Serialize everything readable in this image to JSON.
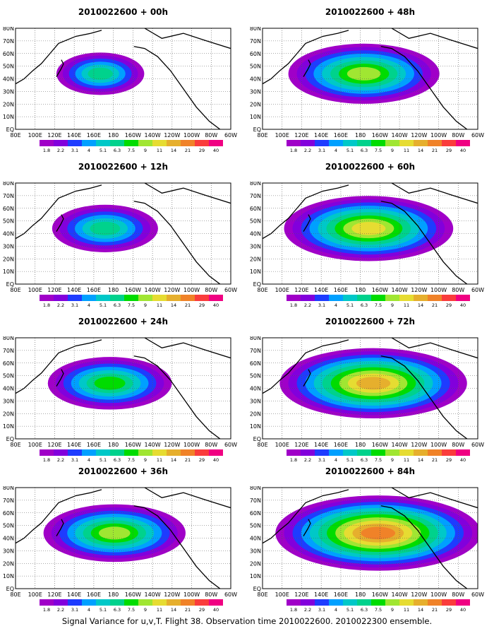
{
  "lat_labels": [
    "80N",
    "70N",
    "60N",
    "50N",
    "40N",
    "30N",
    "20N",
    "10N",
    "EQ"
  ],
  "lon_labels": [
    "80E",
    "100E",
    "120E",
    "140E",
    "160E",
    "180",
    "160W",
    "140W",
    "120W",
    "100W",
    "80W",
    "60W"
  ],
  "colorbar": {
    "labels": [
      "1.8",
      "2.2",
      "3.1",
      "4",
      "5.1",
      "6.3",
      "7.5",
      "9",
      "11",
      "14",
      "21",
      "29",
      "40"
    ],
    "colors": [
      "#a000c8",
      "#8200dc",
      "#1e3cff",
      "#00a0ff",
      "#00c8c8",
      "#00d28c",
      "#00dc00",
      "#a0e632",
      "#e6dc32",
      "#e6af2d",
      "#f08228",
      "#fa3c3c",
      "#f00082"
    ]
  },
  "panels": [
    {
      "title": "2010022600 + 00h",
      "level": 0.2
    },
    {
      "title": "2010022600 + 48h",
      "level": 0.55
    },
    {
      "title": "2010022600 + 12h",
      "level": 0.3
    },
    {
      "title": "2010022600 + 60h",
      "level": 0.65
    },
    {
      "title": "2010022600 + 24h",
      "level": 0.4
    },
    {
      "title": "2010022600 + 72h",
      "level": 0.75
    },
    {
      "title": "2010022600 + 36h",
      "level": 0.5
    },
    {
      "title": "2010022600 + 84h",
      "level": 0.85
    }
  ],
  "footer": "Signal Variance for u,v,T. Flight 38. Observation time 2010022600. 2010022300 ensemble."
}
